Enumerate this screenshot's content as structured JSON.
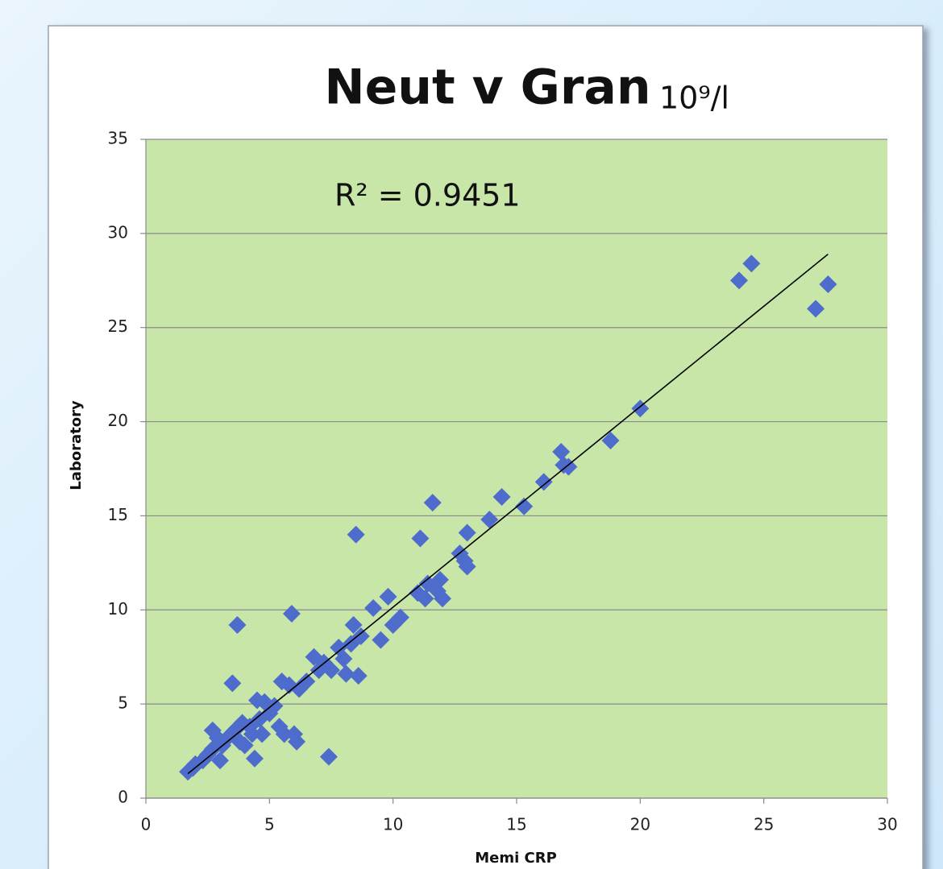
{
  "chart_data": {
    "type": "scatter",
    "title": "Neut v Gran",
    "unit": "10⁹/l",
    "annotation": "R² = 0.9451",
    "xlabel": "Memi CRP",
    "ylabel": "Laboratory",
    "color": "#4e6ccc",
    "plot_background": "#c8e6a8",
    "grid": true,
    "xlim": [
      0,
      30
    ],
    "ylim": [
      0,
      35
    ],
    "xticks": [
      0,
      5,
      10,
      15,
      20,
      25,
      30
    ],
    "yticks": [
      0,
      5,
      10,
      15,
      20,
      25,
      30,
      35
    ],
    "x": [
      1.7,
      1.9,
      2.0,
      2.3,
      2.5,
      2.7,
      2.7,
      2.9,
      3.0,
      3.1,
      3.3,
      3.5,
      3.6,
      3.7,
      3.8,
      3.9,
      4.0,
      4.2,
      4.3,
      4.4,
      4.5,
      4.6,
      4.7,
      4.8,
      5.0,
      5.2,
      5.4,
      5.5,
      5.6,
      5.8,
      5.9,
      6.0,
      6.1,
      6.2,
      6.5,
      6.8,
      7.0,
      7.2,
      7.4,
      7.5,
      7.8,
      8.0,
      8.1,
      8.3,
      8.4,
      8.5,
      8.6,
      8.7,
      9.2,
      9.5,
      9.8,
      10.0,
      10.3,
      11.0,
      11.1,
      11.3,
      11.4,
      11.6,
      11.8,
      11.9,
      12.0,
      12.7,
      12.9,
      13.0,
      13.0,
      13.9,
      14.4,
      15.3,
      16.1,
      16.8,
      16.9,
      17.1,
      18.8,
      20.0,
      24.0,
      24.5,
      27.1,
      27.6
    ],
    "values": [
      1.4,
      1.6,
      1.8,
      2.0,
      2.3,
      2.6,
      3.6,
      3.2,
      2.0,
      2.8,
      3.2,
      6.1,
      3.6,
      9.2,
      3.0,
      4.0,
      2.8,
      3.8,
      3.4,
      2.1,
      5.2,
      4.2,
      3.4,
      5.1,
      4.5,
      4.9,
      3.8,
      6.2,
      3.4,
      6.0,
      9.8,
      3.4,
      3.0,
      5.8,
      6.2,
      7.5,
      6.8,
      7.2,
      2.2,
      6.8,
      8.0,
      7.4,
      6.6,
      8.2,
      9.2,
      14.0,
      6.5,
      8.6,
      10.1,
      8.4,
      10.7,
      9.2,
      9.6,
      10.9,
      13.8,
      10.6,
      11.4,
      15.7,
      11.0,
      11.6,
      10.6,
      13.0,
      12.6,
      14.1,
      12.3,
      14.8,
      16.0,
      15.5,
      16.8,
      18.4,
      17.7,
      17.6,
      19.0,
      20.7,
      27.5,
      28.4,
      26.0,
      27.3
    ],
    "trendline": {
      "x": [
        1.7,
        27.6
      ],
      "values": [
        1.3,
        28.9
      ],
      "color": "#000000"
    }
  }
}
